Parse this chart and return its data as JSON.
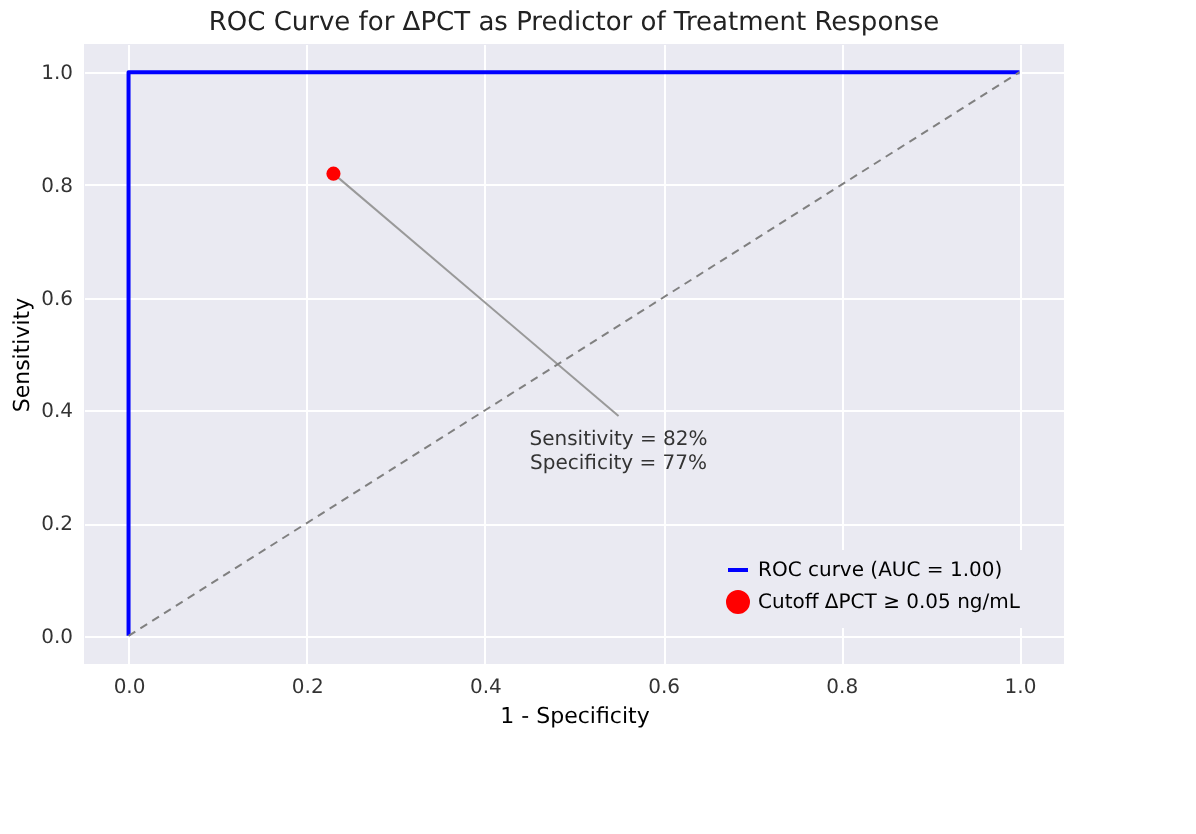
{
  "chart_data": {
    "type": "line",
    "title": "ROC Curve for ΔPCT as Predictor of Treatment Response",
    "xlabel": "1 - Specificity",
    "ylabel": "Sensitivity",
    "series": [
      {
        "name": "ROC curve (AUC = 1.00)",
        "color": "#0000ff",
        "x": [
          0,
          0,
          1
        ],
        "values": [
          0,
          1,
          1
        ]
      },
      {
        "color": "#808080",
        "line_style": "dashed",
        "x": [
          0,
          1
        ],
        "values": [
          0,
          1
        ]
      },
      {
        "name": "Cutoff ΔPCT ≥ 0.05 ng/mL",
        "type": "scatter",
        "color": "#ff0000",
        "x": [
          0.23
        ],
        "values": [
          0.82
        ]
      }
    ],
    "annotations": [
      {
        "text": "Sensitivity = 82%\nSpecificity = 77%",
        "x": 0.23,
        "y": 0.82
      }
    ],
    "xlim": [
      -0.05,
      1.05
    ],
    "ylim": [
      -0.05,
      1.05
    ],
    "xticks": [
      {
        "value": 0,
        "label": "0.0"
      },
      0.2,
      0.4,
      0.6,
      0.8,
      {
        "value": 1,
        "label": "1.0"
      }
    ],
    "yticks": [
      {
        "value": 0,
        "label": "0.0"
      },
      0.2,
      0.4,
      0.6,
      0.8,
      {
        "value": 1,
        "label": "1.0"
      }
    ],
    "grid": true,
    "legend": "bottom right"
  }
}
